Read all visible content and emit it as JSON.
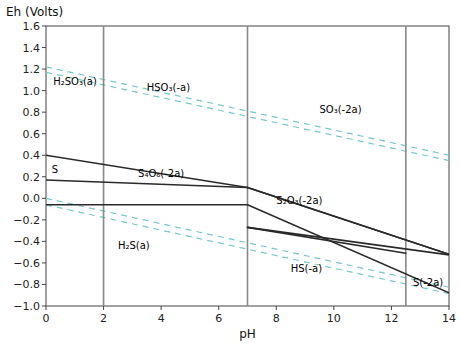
{
  "chart_data": {
    "type": "line",
    "x_label": "pH",
    "y_label": "Eh (Volts)",
    "xlim": [
      0,
      14
    ],
    "ylim": [
      -1.0,
      1.6
    ],
    "xticks": [
      0,
      2,
      4,
      6,
      8,
      10,
      12,
      14
    ],
    "yticks": [
      {
        "value": -1.0,
        "label": "−1.0"
      },
      {
        "value": -0.8,
        "label": "−0.8"
      },
      {
        "value": -0.6,
        "label": "−0.6"
      },
      {
        "value": -0.4,
        "label": "−0.4"
      },
      {
        "value": -0.2,
        "label": "−0.2"
      },
      {
        "value": 0.0,
        "label": "0.0"
      },
      0.2,
      0.4,
      0.6,
      0.8,
      {
        "value": 1.0,
        "label": "1.0"
      },
      1.2,
      1.4,
      1.6
    ],
    "series": [
      {
        "color": "#76c8c8",
        "line_style": "dashed",
        "x": [
          0,
          14
        ],
        "values": [
          1.22,
          0.4
        ]
      },
      {
        "color": "#76c8c8",
        "line_style": "dashed",
        "x": [
          0,
          14
        ],
        "values": [
          0.0,
          -0.826
        ]
      },
      {
        "color": "#76c8c8",
        "line_style": "dashed",
        "x": [
          0,
          14
        ],
        "values": [
          1.17,
          0.35
        ]
      },
      {
        "color": "#76c8c8",
        "line_style": "dashed",
        "x": [
          0,
          14
        ],
        "values": [
          -0.06,
          -0.885
        ]
      },
      {
        "color": "#888888",
        "line_style": "solid",
        "x": [
          2.0,
          2.0
        ],
        "values": [
          -1.0,
          1.6
        ]
      },
      {
        "color": "#888888",
        "line_style": "solid",
        "x": [
          7.0,
          7.0
        ],
        "values": [
          -1.0,
          1.6
        ]
      },
      {
        "color": "#888888",
        "line_style": "solid",
        "x": [
          12.5,
          12.5
        ],
        "values": [
          -1.0,
          1.6
        ]
      },
      {
        "color": "#2a2a2a",
        "line_style": "solid",
        "x": [
          0,
          7
        ],
        "values": [
          0.4,
          0.1
        ]
      },
      {
        "color": "#2a2a2a",
        "line_style": "solid",
        "x": [
          0,
          7
        ],
        "values": [
          0.17,
          0.1
        ]
      },
      {
        "color": "#2a2a2a",
        "line_style": "solid",
        "x": [
          7,
          14
        ],
        "values": [
          0.1,
          -0.52
        ]
      },
      {
        "color": "#2a2a2a",
        "line_style": "solid",
        "x": [
          7,
          14
        ],
        "values": [
          0.1,
          -0.52
        ]
      },
      {
        "color": "#2a2a2a",
        "line_style": "solid",
        "x": [
          7,
          12.5
        ],
        "values": [
          -0.27,
          -0.51
        ]
      },
      {
        "color": "#2a2a2a",
        "line_style": "solid",
        "x": [
          7,
          14
        ],
        "values": [
          -0.27,
          -0.525
        ]
      },
      {
        "color": "#2a2a2a",
        "line_style": "solid",
        "x": [
          0,
          7
        ],
        "values": [
          -0.06,
          -0.06
        ]
      },
      {
        "color": "#2a2a2a",
        "line_style": "solid",
        "x": [
          7,
          14
        ],
        "values": [
          -0.06,
          -0.878
        ]
      }
    ],
    "annotations": [
      {
        "text": "H₂SO₃(a)",
        "x": 0.25,
        "y": 1.09
      },
      {
        "text": "HSO₃(-a)",
        "x": 3.5,
        "y": 1.03
      },
      {
        "text": "SO₃(-2a)",
        "x": 9.5,
        "y": 0.83
      },
      {
        "text": "S",
        "x": 0.2,
        "y": 0.27
      },
      {
        "text": "S₄O₆(-2a)",
        "x": 3.2,
        "y": 0.235
      },
      {
        "text": "S₂O₃(-2a)",
        "x": 8.0,
        "y": -0.02
      },
      {
        "text": "H₂S(a)",
        "x": 2.5,
        "y": -0.43
      },
      {
        "text": "HS(-a)",
        "x": 8.5,
        "y": -0.65
      },
      {
        "text": "S(-2a)",
        "x": 12.75,
        "y": -0.78
      }
    ]
  }
}
